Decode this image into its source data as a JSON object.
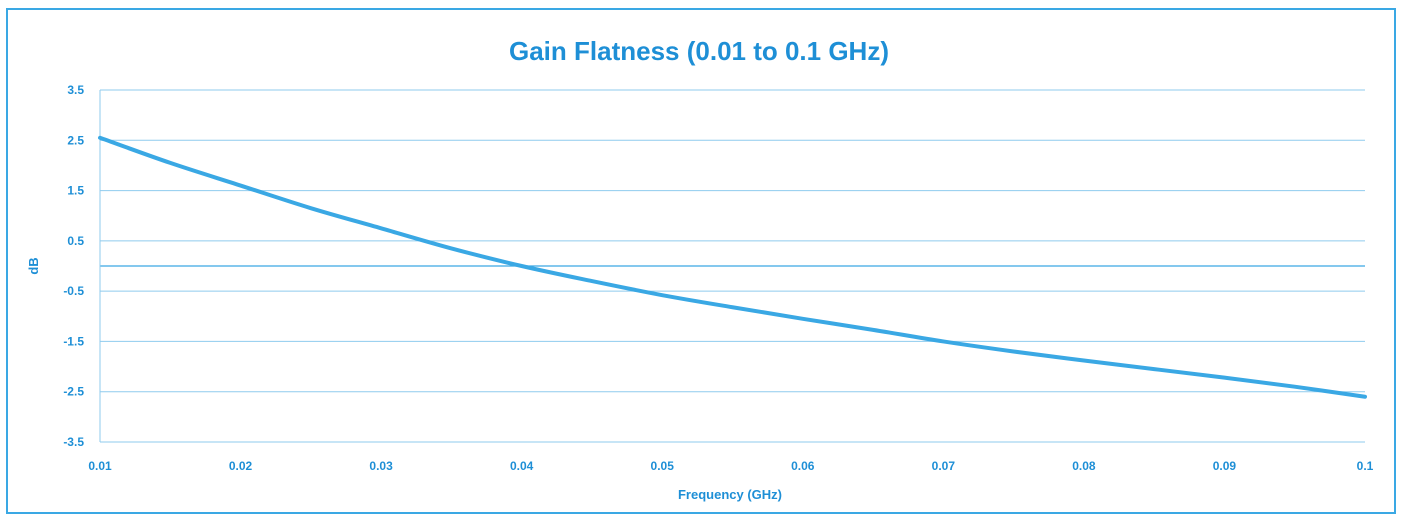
{
  "chart_data": {
    "type": "line",
    "title": "Gain Flatness (0.01 to 0.1 GHz)",
    "xlabel": "Frequency (GHz)",
    "ylabel": "dB",
    "xlim": [
      0.01,
      0.1
    ],
    "ylim": [
      -3.5,
      3.5
    ],
    "x_ticks": [
      "0.01",
      "0.02",
      "0.03",
      "0.04",
      "0.05",
      "0.06",
      "0.07",
      "0.08",
      "0.09",
      "0.1"
    ],
    "y_ticks": [
      "3.5",
      "2.5",
      "1.5",
      "0.5",
      "-0.5",
      "-1.5",
      "-2.5",
      "-3.5"
    ],
    "grid": true,
    "line_color": "#3aa8e4",
    "accent_color": "#1e8fd6",
    "series": [
      {
        "x": [
          0.01,
          0.015,
          0.02,
          0.025,
          0.03,
          0.035,
          0.04,
          0.045,
          0.05,
          0.055,
          0.06,
          0.065,
          0.07,
          0.075,
          0.08,
          0.085,
          0.09,
          0.095,
          0.1
        ],
        "values": [
          2.55,
          2.05,
          1.6,
          1.15,
          0.75,
          0.35,
          0.0,
          -0.3,
          -0.58,
          -0.82,
          -1.05,
          -1.27,
          -1.5,
          -1.7,
          -1.88,
          -2.05,
          -2.22,
          -2.4,
          -2.6
        ]
      }
    ]
  }
}
